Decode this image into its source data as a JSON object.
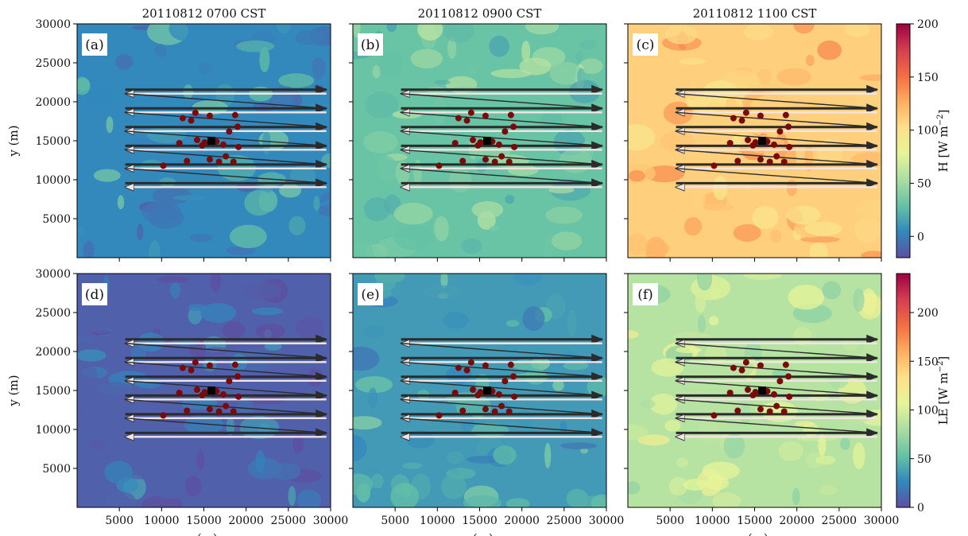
{
  "chart_data": [
    {
      "type": "heatmap",
      "panel": "(a)",
      "title": "20110812 0700 CST",
      "variable": "H",
      "background_level": 5,
      "field_description": "sensible heat flux map, mostly near 0 W m-2 with scattered patches",
      "xlim": [
        0,
        30000
      ],
      "ylim": [
        0,
        30000
      ]
    },
    {
      "type": "heatmap",
      "panel": "(b)",
      "title": "20110812 0900 CST",
      "variable": "H",
      "background_level": 30,
      "field_description": "sensible heat flux map, roughly 10-50 W m-2",
      "xlim": [
        0,
        30000
      ],
      "ylim": [
        0,
        30000
      ]
    },
    {
      "type": "heatmap",
      "panel": "(c)",
      "title": "20110812 1100 CST",
      "variable": "H",
      "background_level": 110,
      "field_description": "sensible heat flux map, roughly 90-160 W m-2",
      "xlim": [
        0,
        30000
      ],
      "ylim": [
        0,
        30000
      ]
    },
    {
      "type": "heatmap",
      "panel": "(d)",
      "title": "",
      "variable": "LE",
      "background_level": 8,
      "field_description": "latent heat flux map, mostly below 20 W m-2",
      "xlim": [
        0,
        30000
      ],
      "ylim": [
        0,
        30000
      ]
    },
    {
      "type": "heatmap",
      "panel": "(e)",
      "title": "",
      "variable": "LE",
      "background_level": 35,
      "field_description": "latent heat flux map, roughly 20-80 W m-2",
      "xlim": [
        0,
        30000
      ],
      "ylim": [
        0,
        30000
      ]
    },
    {
      "type": "heatmap",
      "panel": "(f)",
      "title": "",
      "variable": "LE",
      "background_level": 85,
      "field_description": "latent heat flux map, roughly 60-150 W m-2",
      "xlim": [
        0,
        30000
      ],
      "ylim": [
        0,
        30000
      ]
    }
  ],
  "axes": {
    "xlabel": "x(m)",
    "ylabel": "y (m)",
    "xticks": [
      "5000",
      "10000",
      "15000",
      "20000",
      "25000",
      "30000"
    ],
    "xtick_values": [
      5000,
      10000,
      15000,
      20000,
      25000,
      30000
    ],
    "yticks": [
      "5000",
      "10000",
      "15000",
      "20000",
      "25000",
      "30000"
    ],
    "ytick_values": [
      5000,
      10000,
      15000,
      20000,
      25000,
      30000
    ]
  },
  "colorbars": [
    {
      "label_main": "H  [W m",
      "label_sup": "−2",
      "label_end": "]",
      "min": -20,
      "max": 200,
      "ticks": [
        "0",
        "50",
        "100",
        "150",
        "200"
      ],
      "tick_values": [
        0,
        50,
        100,
        150,
        200
      ]
    },
    {
      "label_main": "LE  [W m",
      "label_sup": "−2",
      "label_end": "]",
      "min": 0,
      "max": 240,
      "ticks": [
        "0",
        "50",
        "100",
        "150",
        "200"
      ],
      "tick_values": [
        0,
        50,
        100,
        150,
        200
      ]
    }
  ],
  "flight_legs": {
    "x_start": 5700,
    "x_end": 29500,
    "y": [
      21300,
      18900,
      16500,
      14100,
      11700,
      9300
    ],
    "color_outbound": "#2b2b2b",
    "color_return": "#f3e4e4"
  },
  "stations": {
    "color": "#7a0a0a",
    "points": [
      [
        12500,
        17900
      ],
      [
        13500,
        17600
      ],
      [
        14000,
        18600
      ],
      [
        15700,
        18200
      ],
      [
        18700,
        18300
      ],
      [
        19000,
        16800
      ],
      [
        18000,
        16200
      ],
      [
        14200,
        15100
      ],
      [
        15100,
        14800
      ],
      [
        16500,
        14900
      ],
      [
        14800,
        14400
      ],
      [
        17300,
        14500
      ],
      [
        12100,
        14700
      ],
      [
        19100,
        14200
      ],
      [
        13000,
        12400
      ],
      [
        15700,
        12600
      ],
      [
        17600,
        13000
      ],
      [
        16800,
        12300
      ],
      [
        18500,
        12300
      ],
      [
        10200,
        11800
      ]
    ],
    "site": [
      15900,
      15000
    ]
  },
  "colormap": [
    "#5e4fa2",
    "#3288bd",
    "#66c2a5",
    "#abdda4",
    "#e6f598",
    "#fee08b",
    "#fdae61",
    "#f46d43",
    "#d53e4f",
    "#9e0142"
  ]
}
